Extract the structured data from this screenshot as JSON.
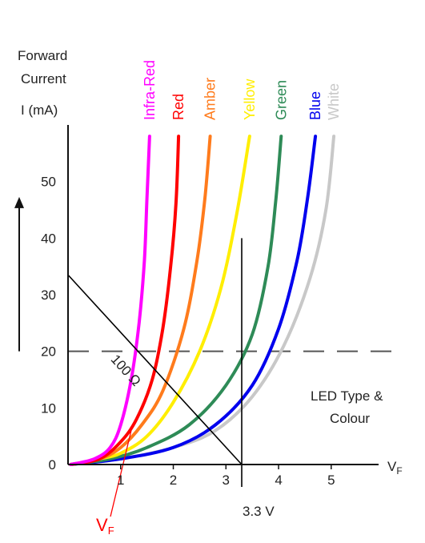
{
  "chart_data": {
    "type": "line",
    "ylabel_line1": "Forward",
    "ylabel_line2": "Current",
    "ylabel_unit": "I (mA)",
    "xlabel_main": "V",
    "xlabel_sub": "F",
    "xlim": [
      0,
      5.9
    ],
    "ylim": [
      0,
      60
    ],
    "x_ticks": [
      1,
      2,
      3,
      4,
      5
    ],
    "y_ticks": [
      0,
      10,
      20,
      30,
      40,
      50
    ],
    "axis_color": "#111111",
    "unit_color": "#4a6fa5",
    "series": [
      {
        "name": "Infra-Red",
        "color": "#ff00ff",
        "x": [
          0.05,
          0.5,
          0.8,
          1.0,
          1.2,
          1.35,
          1.45,
          1.5,
          1.55
        ],
        "y": [
          0,
          1,
          3,
          7,
          15,
          25,
          36,
          47,
          58
        ]
      },
      {
        "name": "Red",
        "color": "#ff0000",
        "x": [
          0.05,
          0.6,
          1.0,
          1.3,
          1.6,
          1.8,
          1.95,
          2.05,
          2.1
        ],
        "y": [
          0,
          1,
          4,
          8,
          15,
          24,
          35,
          46,
          58
        ]
      },
      {
        "name": "Amber",
        "color": "#ff7b1c",
        "x": [
          0.05,
          0.6,
          1.0,
          1.4,
          1.8,
          2.2,
          2.45,
          2.6,
          2.7
        ],
        "y": [
          0,
          1,
          3,
          7,
          13,
          24,
          36,
          47,
          58
        ]
      },
      {
        "name": "Yellow",
        "color": "#ffee00",
        "x": [
          0.05,
          0.6,
          1.0,
          1.5,
          2.0,
          2.5,
          2.9,
          3.2,
          3.45
        ],
        "y": [
          0,
          1,
          2,
          5,
          11,
          20,
          31,
          44,
          58
        ]
      },
      {
        "name": "Green",
        "color": "#2e8b57",
        "x": [
          0.05,
          0.8,
          1.5,
          2.3,
          3.0,
          3.5,
          3.8,
          3.95,
          4.05
        ],
        "y": [
          0,
          1,
          3,
          7,
          14,
          23,
          35,
          47,
          58
        ]
      },
      {
        "name": "Blue",
        "color": "#0000ee",
        "x": [
          0.05,
          1.0,
          2.0,
          2.8,
          3.5,
          4.0,
          4.35,
          4.55,
          4.7
        ],
        "y": [
          0,
          1,
          3,
          7,
          14,
          24,
          36,
          47,
          58
        ]
      },
      {
        "name": "White",
        "color": "#c8c8c8",
        "x": [
          0.05,
          1.0,
          2.0,
          2.8,
          3.5,
          4.1,
          4.6,
          4.9,
          5.05
        ],
        "y": [
          0,
          1,
          3,
          6,
          12,
          21,
          33,
          45,
          58
        ]
      }
    ],
    "reference_lines": {
      "current_20mA": {
        "y": 20,
        "color": "#555555"
      },
      "load_line": {
        "x1": 0,
        "y1": 33.5,
        "x2": 3.3,
        "y2": 0,
        "label": "100 Ω",
        "color": "#000000"
      },
      "supply_voltage": {
        "x": 3.3,
        "y_top": 40,
        "label": "3.3 V",
        "color": "#000000"
      },
      "vf_pointer": {
        "from_x": 1.2,
        "from_y": 6,
        "label_main": "V",
        "label_sub": "F",
        "color": "#ff0000"
      }
    },
    "annotation_line1": "LED Type &",
    "annotation_line2": "Colour",
    "arrow_y_from": 20,
    "arrow_y_to": 47
  }
}
